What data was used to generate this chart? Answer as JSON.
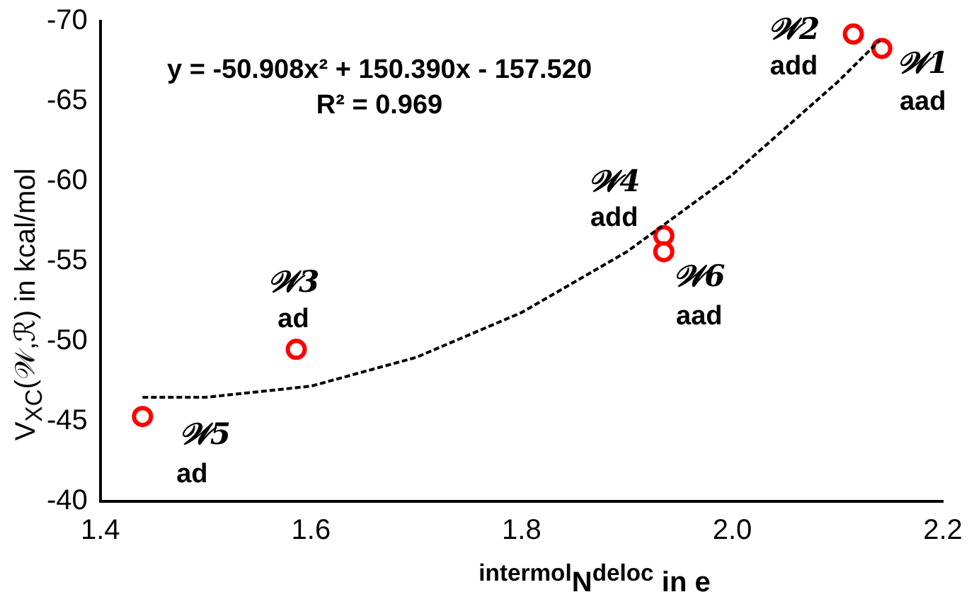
{
  "chart_data": {
    "type": "scatter",
    "xlabel": "$^{intermol}$N$^{deloc}$ in  e",
    "ylabel": "V$_{XC}$(𝒲,ℛ) in kcal/mol",
    "xlim": [
      1.4,
      2.2
    ],
    "xticks": [
      1.4,
      1.6,
      1.8,
      {
        "value": 2,
        "label": "2.0"
      },
      2.2
    ],
    "ylim": [
      -40,
      -70
    ],
    "yticks": [
      -40,
      -45,
      -50,
      -55,
      -60,
      -65,
      -70
    ],
    "grid": false,
    "legend": false,
    "marker": "circle",
    "series": [
      {
        "color": "#ff0000",
        "x": [
          2.142,
          2.115,
          1.586,
          1.935,
          1.44,
          1.935
        ],
        "values": [
          -68.3,
          -69.2,
          -49.5,
          -56.6,
          -45.3,
          -55.6
        ]
      },
      {
        "type": "line",
        "color": "#000000",
        "line_style": "dashed",
        "marker": "none",
        "x": [
          1.44,
          1.5,
          1.6,
          1.7,
          1.8,
          1.9,
          2.0,
          2.1,
          2.14
        ],
        "values": [
          -46.5,
          -46.5,
          -47.2,
          -49.0,
          -51.8,
          -55.6,
          -60.4,
          -66.2,
          -68.8
        ]
      }
    ],
    "annotations": [
      "y = -50.908x² + 150.390x - 157.520",
      "R² = 0.969",
      {
        "text": "𝒲1",
        "x": 2.142,
        "y": -68.3
      },
      {
        "text": "aad",
        "x": 2.142,
        "y": -68.3
      },
      {
        "text": "𝒲2",
        "x": 2.115,
        "y": -69.2
      },
      {
        "text": "add",
        "x": 2.115,
        "y": -69.2
      },
      {
        "text": "𝒲3",
        "x": 1.586,
        "y": -49.5
      },
      {
        "text": "ad",
        "x": 1.586,
        "y": -49.5
      },
      {
        "text": "𝒲4",
        "x": 1.935,
        "y": -56.6
      },
      {
        "text": "add",
        "x": 1.935,
        "y": -56.6
      },
      {
        "text": "𝒲5",
        "x": 1.44,
        "y": -45.3
      },
      {
        "text": "ad",
        "x": 1.44,
        "y": -45.3
      },
      {
        "text": "𝒲6",
        "x": 1.935,
        "y": -55.6
      },
      {
        "text": "aad",
        "x": 1.935,
        "y": -55.6
      }
    ]
  }
}
